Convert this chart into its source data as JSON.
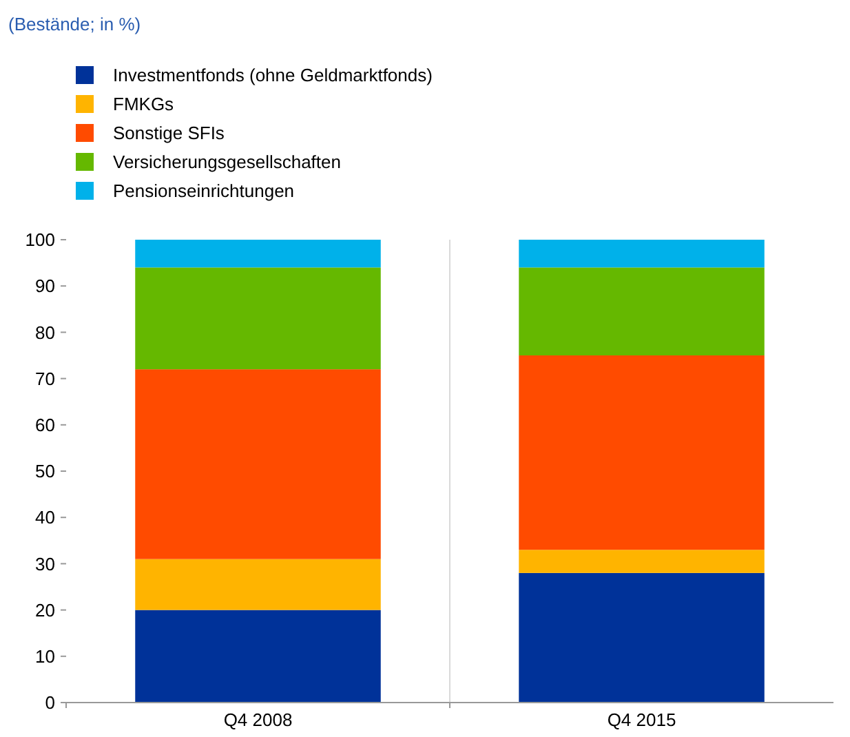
{
  "chart_data": {
    "type": "bar",
    "title": "(Bestände; in %)",
    "stacked": true,
    "categories": [
      "Q4 2008",
      "Q4 2015"
    ],
    "series": [
      {
        "name": "Investmentfonds (ohne Geldmarktfonds)",
        "color": "#003299",
        "values": [
          20,
          28
        ]
      },
      {
        "name": "FMKGs",
        "color": "#ffb400",
        "values": [
          11,
          5
        ]
      },
      {
        "name": "Sonstige SFIs",
        "color": "#ff4b00",
        "values": [
          41,
          42
        ]
      },
      {
        "name": "Versicherungsgesellschaften",
        "color": "#65b800",
        "values": [
          22,
          19
        ]
      },
      {
        "name": "Pensionseinrichtungen",
        "color": "#00b1ea",
        "values": [
          6,
          6
        ]
      }
    ],
    "ylim": [
      0,
      100
    ],
    "yticks": [
      0,
      10,
      20,
      30,
      40,
      50,
      60,
      70,
      80,
      90,
      100
    ],
    "grid": "x",
    "legend": "top left"
  }
}
